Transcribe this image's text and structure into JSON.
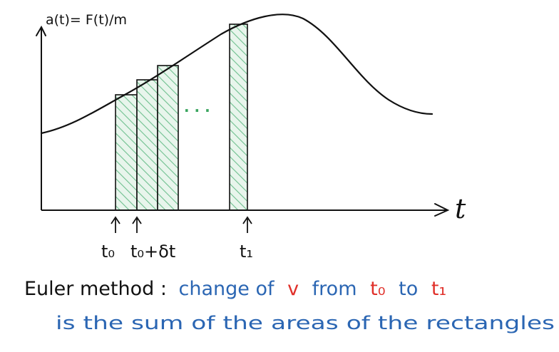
{
  "diagram": {
    "y_axis_label": "a(t)= F(t)/m",
    "x_axis_label": "t",
    "ellipsis": "· · ·",
    "tick_labels": {
      "t0": "t₀",
      "t0_plus_dt": "t₀+δt",
      "t1": "t₁"
    },
    "colors": {
      "ink": "#111111",
      "hatch": "#6fc08f",
      "fill": "#e6f4ea",
      "blue": "#2b66b3",
      "red": "#e0302a"
    }
  },
  "caption": {
    "line1_part1": "Euler method :",
    "line1_part2": "change of",
    "line1_var": "v",
    "line1_part3": "from",
    "line1_t0": "t₀",
    "line1_part4": "to",
    "line1_t1": "t₁",
    "line2": "is the sum of the areas of the rectangles"
  }
}
